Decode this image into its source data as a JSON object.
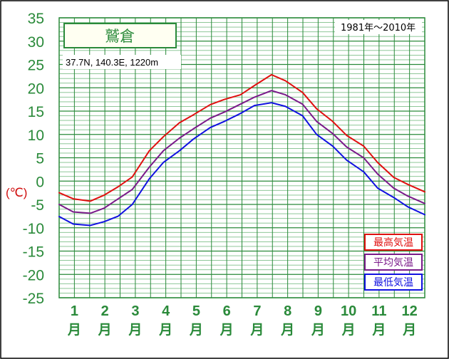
{
  "chart_data": {
    "type": "line",
    "station": "鷲倉",
    "location": "37.7N,  140.3E,  1220m",
    "period": "1981年～2010年",
    "ylabel": "(℃)",
    "ylim": [
      -25,
      35
    ],
    "yticks": [
      "35",
      "30",
      "25",
      "20",
      "15",
      "10",
      "5",
      "0",
      "-5",
      "-10",
      "-15",
      "-20",
      "-25"
    ],
    "categories": [
      "1",
      "2",
      "3",
      "4",
      "5",
      "6",
      "7",
      "8",
      "9",
      "10",
      "11",
      "12"
    ],
    "month_suffix": "月",
    "x": [
      1,
      15,
      32,
      46,
      60,
      74,
      91,
      105,
      121,
      135,
      152,
      166,
      182,
      196,
      213,
      227,
      244,
      258,
      274,
      288,
      305,
      319,
      335,
      349,
      366
    ],
    "series": [
      {
        "name": "最高気温",
        "color": "#e01010",
        "values": [
          -2.5,
          -3.8,
          -4.3,
          -3.0,
          -1.2,
          0.9,
          6.5,
          9.5,
          12.5,
          14.2,
          16.4,
          17.5,
          18.5,
          20.5,
          22.8,
          21.5,
          19.0,
          15.5,
          12.8,
          9.8,
          7.5,
          4.0,
          0.8,
          -0.7,
          -2.3
        ]
      },
      {
        "name": "平均気温",
        "color": "#7a1a8a",
        "values": [
          -5.0,
          -6.6,
          -6.9,
          -5.8,
          -3.8,
          -1.8,
          3.0,
          6.5,
          9.2,
          11.2,
          13.5,
          14.8,
          16.5,
          18.0,
          19.4,
          18.5,
          16.5,
          12.8,
          10.2,
          7.3,
          5.0,
          1.5,
          -1.5,
          -3.2,
          -4.8
        ]
      },
      {
        "name": "最低気温",
        "color": "#1010e0",
        "values": [
          -7.6,
          -9.2,
          -9.5,
          -8.7,
          -7.5,
          -5.0,
          0.5,
          4.0,
          6.5,
          9.0,
          11.5,
          12.8,
          14.5,
          16.2,
          16.8,
          16.0,
          14.0,
          10.0,
          7.5,
          4.5,
          2.0,
          -1.5,
          -3.5,
          -5.5,
          -7.2
        ]
      }
    ],
    "grid": true,
    "legend": "bottom-right"
  }
}
